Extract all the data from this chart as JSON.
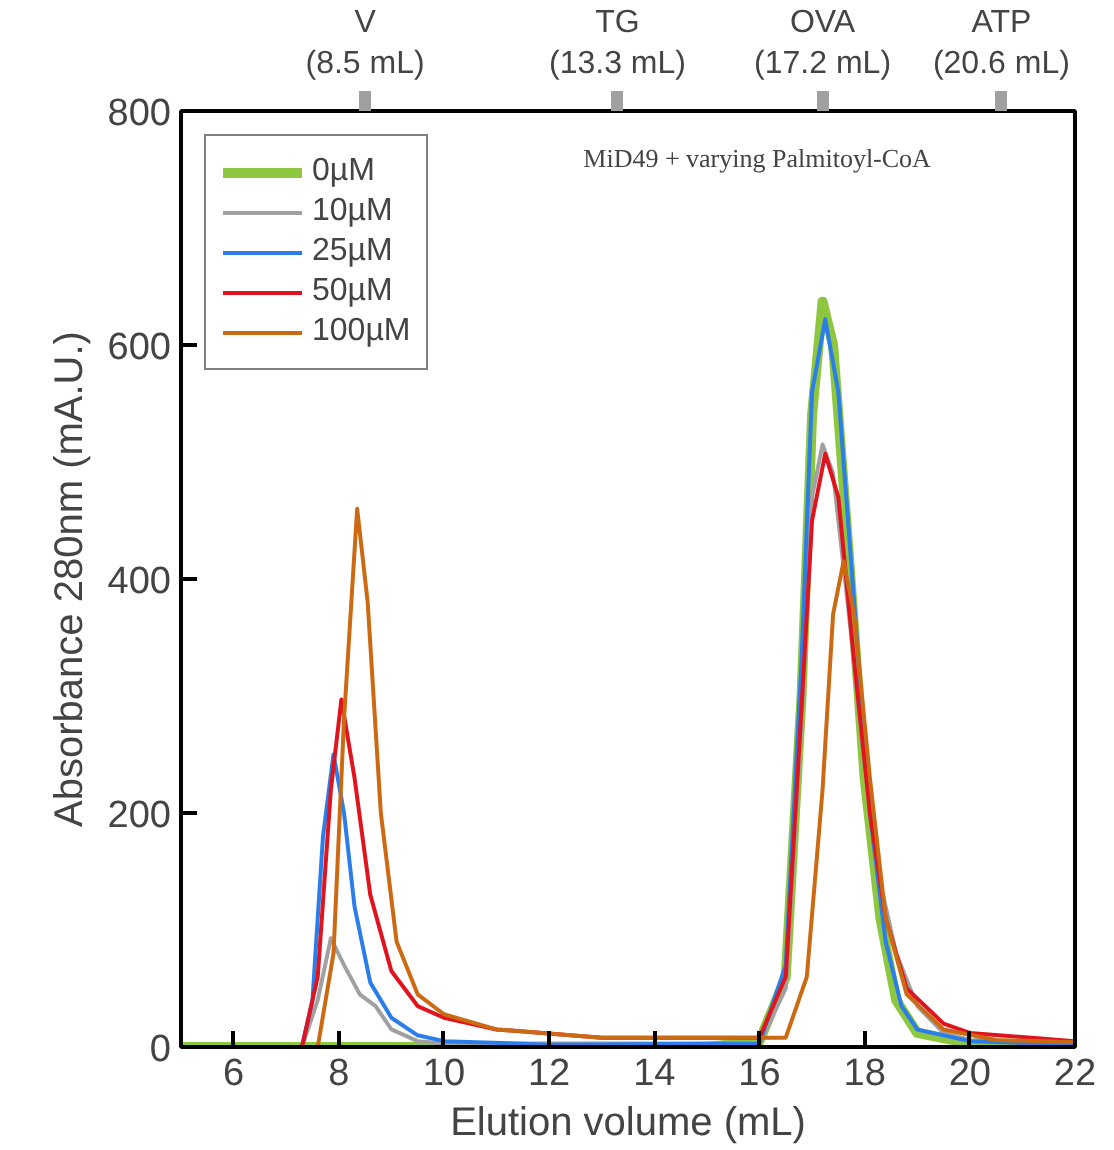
{
  "chart_data": {
    "type": "line",
    "xlabel": "Elution volume (mL)",
    "ylabel": "Absorbance 280nm (mA.U.)",
    "xlim": [
      5,
      22
    ],
    "xticks": [
      6,
      8,
      10,
      12,
      14,
      16,
      18,
      20,
      22
    ],
    "ylim": [
      0,
      800
    ],
    "yticks": [
      0,
      200,
      400,
      600,
      800
    ],
    "x2lim": [
      5,
      22
    ],
    "x2ticks": [
      {
        "value": 8.5,
        "label": "V\n(8.5 mL)"
      },
      {
        "value": 13.3,
        "label": "TG\n(13.3 mL)"
      },
      {
        "value": 17.2,
        "label": "OVA\n(17.2 mL)"
      },
      {
        "value": 20.6,
        "label": "ATP\n(20.6 mL)"
      }
    ],
    "annotations": [
      "MiD49 + varying Palmitoyl-CoA"
    ],
    "legend": "top left",
    "grid": false,
    "marker": "none",
    "line_style": "solid",
    "series": [
      {
        "name": "0µM",
        "color": "#8dc63f",
        "x": [
          5,
          8,
          9,
          15,
          16,
          16.5,
          16.8,
          17.0,
          17.2,
          17.4,
          17.7,
          18.0,
          18.3,
          18.6,
          19,
          20,
          22
        ],
        "values": [
          0,
          0,
          0,
          0,
          5,
          60,
          300,
          540,
          637,
          600,
          420,
          230,
          110,
          40,
          12,
          3,
          0
        ]
      },
      {
        "name": "10µM",
        "color": "#a0a0a0",
        "x": [
          5,
          7.3,
          7.6,
          7.85,
          8.1,
          8.4,
          8.7,
          9,
          9.5,
          10,
          16,
          16.5,
          16.8,
          17.0,
          17.2,
          17.4,
          17.7,
          18,
          18.3,
          18.6,
          19,
          19.5,
          20,
          22
        ],
        "values": [
          0,
          0,
          40,
          93,
          70,
          45,
          35,
          15,
          5,
          3,
          3,
          50,
          280,
          470,
          515,
          490,
          370,
          240,
          140,
          80,
          35,
          12,
          6,
          3
        ]
      },
      {
        "name": "25µM",
        "color": "#2b7de9",
        "x": [
          5,
          7.3,
          7.5,
          7.7,
          7.9,
          8.1,
          8.3,
          8.6,
          9,
          9.5,
          10,
          12,
          16,
          16.5,
          16.8,
          17.0,
          17.25,
          17.5,
          17.8,
          18.1,
          18.4,
          18.7,
          19,
          20,
          22
        ],
        "values": [
          0,
          0,
          40,
          180,
          250,
          200,
          120,
          55,
          25,
          10,
          5,
          2,
          3,
          70,
          330,
          560,
          622,
          560,
          380,
          200,
          90,
          35,
          15,
          5,
          2
        ]
      },
      {
        "name": "50µM",
        "color": "#e0141e",
        "x": [
          5,
          7.3,
          7.6,
          7.85,
          8.05,
          8.3,
          8.6,
          9,
          9.5,
          10,
          11,
          13,
          16,
          16.5,
          16.8,
          17.0,
          17.25,
          17.5,
          17.8,
          18.1,
          18.4,
          18.8,
          19.5,
          20,
          22
        ],
        "values": [
          0,
          0,
          60,
          220,
          297,
          230,
          130,
          65,
          35,
          25,
          15,
          8,
          8,
          60,
          290,
          450,
          507,
          470,
          330,
          200,
          110,
          50,
          20,
          12,
          5
        ]
      },
      {
        "name": "100µM",
        "color": "#cc6a14",
        "x": [
          5,
          7.6,
          7.9,
          8.1,
          8.35,
          8.55,
          8.8,
          9.1,
          9.5,
          10,
          11,
          13,
          16.5,
          16.9,
          17.2,
          17.4,
          17.6,
          17.8,
          18.1,
          18.4,
          18.8,
          19.5,
          20.5,
          22
        ],
        "values": [
          0,
          0,
          80,
          280,
          460,
          380,
          200,
          90,
          45,
          28,
          15,
          8,
          8,
          60,
          220,
          370,
          415,
          370,
          230,
          110,
          45,
          15,
          6,
          4
        ]
      }
    ]
  }
}
